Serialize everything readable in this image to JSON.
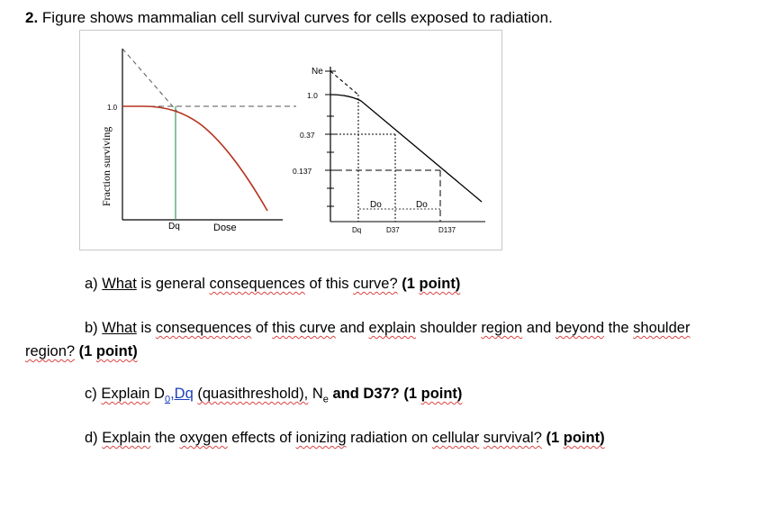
{
  "question": {
    "number": "2.",
    "title": "Figure shows mammalian cell survival curves for cells exposed to radiation."
  },
  "figure": {
    "left": {
      "ylabel": "Fraction surviving",
      "y_tick": "1.0",
      "x_labels": [
        "Dq",
        "Dose"
      ]
    },
    "right": {
      "ne_label": "Ne",
      "y_ticks": [
        "1.0",
        "0.37",
        "0.137"
      ],
      "do_labels": [
        "Do",
        "Do"
      ],
      "x_labels": [
        "Dq",
        "D37",
        "D137"
      ]
    }
  },
  "questions": {
    "a": {
      "prefix": "a) ",
      "w1": "What",
      "t1": " is general ",
      "w2": "consequences",
      "t2": " of this ",
      "w3": "curve?",
      "t3": " (1 ",
      "w4": "point)",
      "t4": ""
    },
    "b": {
      "prefix": "b) ",
      "w1": "What",
      "t1": " is ",
      "w2": "consequences",
      "t2": " of ",
      "w3": "this curve",
      "t3": " and ",
      "w4": "explain",
      "t4": " shoulder ",
      "w5": "region",
      "t5": " and ",
      "w6": "beyond",
      "t6": " the ",
      "w7": "shoulder",
      "line2_w1": "region?",
      "line2_t1": " (1 ",
      "line2_w2": "point)"
    },
    "c": {
      "prefix": "c) ",
      "w1": "Explain",
      "t1": " D",
      "sub1": "0",
      "t_link": ",Dq",
      "t2": " ",
      "w2": "(quasithreshold),",
      "t3": " N",
      "sub2": "e",
      "t4": " and D37? (1 ",
      "w3": "point)"
    },
    "d": {
      "prefix": "d) ",
      "w1": "Explain",
      "t1": " the ",
      "w2": "oxygen",
      "t2": " effects of ",
      "w3": "ionizing",
      "t3": " radiation on ",
      "w4": "cellular",
      "t4": " ",
      "w5": "survival?",
      "t5": " (1 ",
      "w6": "point)"
    }
  }
}
